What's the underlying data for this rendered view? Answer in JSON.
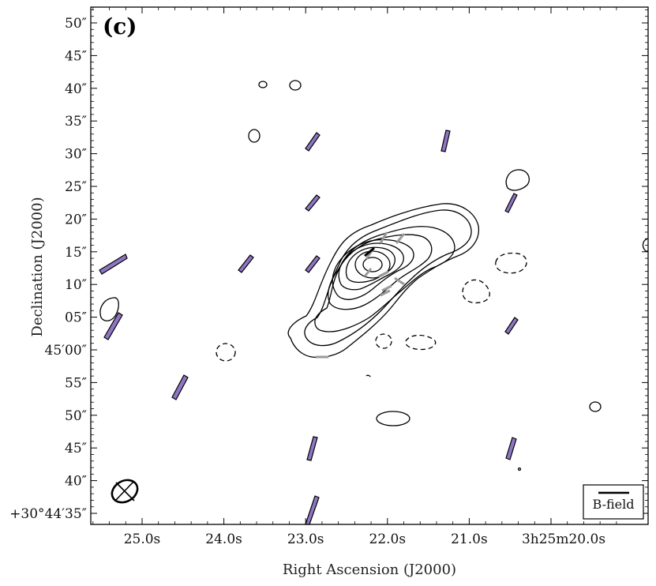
{
  "chart_data": {
    "type": "contour",
    "panel_label": "(c)",
    "xlabel": "Right Ascension (J2000)",
    "ylabel": "Declination (J2000)",
    "x_ticks": [
      "25.0s",
      "24.0s",
      "23.0s",
      "22.0s",
      "21.0s",
      "3h25m20.0s"
    ],
    "y_ticks": [
      "+30°44′35″",
      "40″",
      "45″",
      "50″",
      "55″",
      "45′00″",
      "05″",
      "10″",
      "15″",
      "20″",
      "25″",
      "30″",
      "35″",
      "40″",
      "45″",
      "50″"
    ],
    "legend": {
      "label": "B-field",
      "position": "bottom-right"
    },
    "colors": {
      "bfield_segments": "#8f76c4",
      "inner_vectors": "#9a9a9a",
      "contours": "#000000"
    },
    "contours": {
      "positive_levels": 9,
      "center": [
        "3h25m22.4s",
        "+30°45′13″"
      ],
      "description_note": null
    }
  }
}
